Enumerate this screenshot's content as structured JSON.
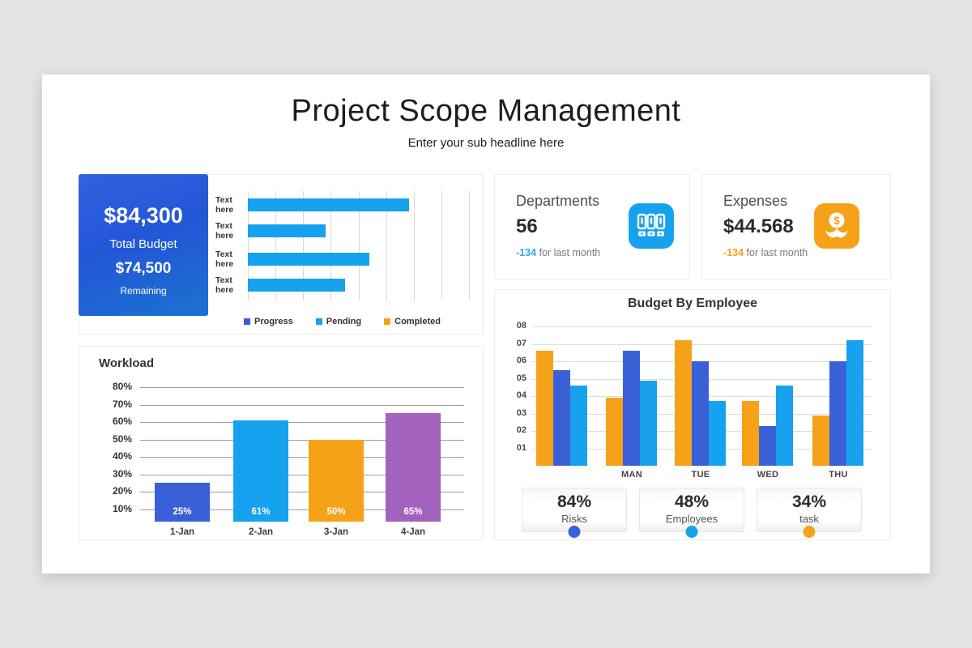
{
  "slide": {
    "title": "Project Scope Management",
    "subtitle": "Enter your sub headline here"
  },
  "budget_card": {
    "amount": "$84,300",
    "amount_label": "Total Budget",
    "remaining": "$74,500",
    "remaining_label": "Remaining"
  },
  "colors": {
    "royal_blue": "#3A60D8",
    "light_blue": "#16A2EE",
    "orange": "#F5A219",
    "purple": "#A262BD",
    "blue_card_gradient_start": "#3061E0",
    "blue_card_gradient_end": "#1A72CF"
  },
  "chart_data": [
    {
      "id": "tasks_hbar",
      "type": "bar",
      "orientation": "horizontal",
      "categories": [
        "Text here",
        "Text here",
        "Text here",
        "Text here"
      ],
      "values": [
        73,
        35,
        55,
        44
      ],
      "value_unit": "percent of x-axis width",
      "xlim": [
        0,
        100
      ],
      "gridlines": 8,
      "grid": "vertical",
      "bar_color": "#16A2EE",
      "legend_position": "bottom",
      "legend": [
        {
          "label": "Progress",
          "color": "#3A60D8"
        },
        {
          "label": "Pending",
          "color": "#16A2EE"
        },
        {
          "label": "Completed",
          "color": "#F5A219"
        }
      ]
    },
    {
      "id": "workload",
      "type": "bar",
      "title": "Workload",
      "categories": [
        "1-Jan",
        "2-Jan",
        "3-Jan",
        "4-Jan"
      ],
      "values": [
        25,
        61,
        50,
        65
      ],
      "bar_labels": [
        "25%",
        "61%",
        "50%",
        "65%"
      ],
      "bar_colors": [
        "#3A60D8",
        "#16A2EE",
        "#F5A219",
        "#A262BD"
      ],
      "yticks": [
        "80%",
        "70%",
        "60%",
        "50%",
        "40%",
        "30%",
        "20%",
        "10%"
      ],
      "ylim": [
        0,
        85
      ],
      "grid": "horizontal"
    },
    {
      "id": "budget_by_employee",
      "type": "bar",
      "title": "Budget By Employee",
      "categories": [
        "",
        "MAN",
        "TUE",
        "WED",
        "THU"
      ],
      "series": [
        {
          "name": "orange",
          "color": "#F5A219",
          "values": [
            6.6,
            3.9,
            7.2,
            3.7,
            2.9
          ]
        },
        {
          "name": "royal-blue",
          "color": "#3A60D8",
          "values": [
            5.5,
            6.6,
            6.0,
            2.3,
            6.0
          ]
        },
        {
          "name": "light-blue",
          "color": "#16A2EE",
          "values": [
            4.6,
            4.9,
            3.7,
            4.6,
            7.2
          ]
        }
      ],
      "yticks": [
        "08",
        "07",
        "06",
        "05",
        "04",
        "03",
        "02",
        "01"
      ],
      "ylim": [
        0,
        8
      ],
      "grid": "horizontal"
    }
  ],
  "kpi_cards": [
    {
      "title": "Departments",
      "value": "56",
      "delta": "-134",
      "delta_note": "for last month",
      "delta_color": "#2FA7E8",
      "icon": "binders-icon",
      "icon_bg": "#16A2EE"
    },
    {
      "title": "Expenses",
      "value": "$44.568",
      "delta": "-134",
      "delta_note": "for last month",
      "delta_color": "#F5A219",
      "icon": "money-plant-icon",
      "icon_bg": "#F5A219"
    }
  ],
  "stats": [
    {
      "value": "84%",
      "label": "Risks",
      "dot_color": "#3A60D8"
    },
    {
      "value": "48%",
      "label": "Employees",
      "dot_color": "#16A2EE"
    },
    {
      "value": "34%",
      "label": "task",
      "dot_color": "#F5A219"
    }
  ]
}
